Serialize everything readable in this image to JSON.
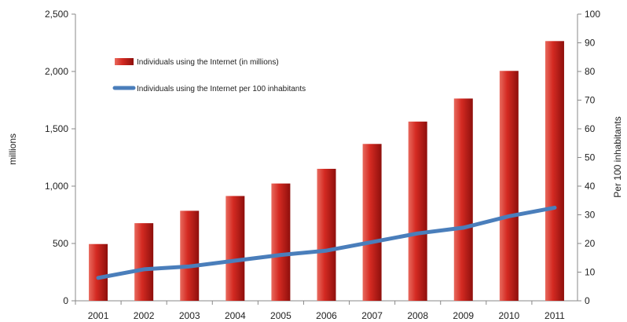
{
  "chart_data": {
    "type": "bar",
    "categories": [
      "2001",
      "2002",
      "2003",
      "2004",
      "2005",
      "2006",
      "2007",
      "2008",
      "2009",
      "2010",
      "2011"
    ],
    "series": [
      {
        "name": "Individuals using the Internet (in millions)",
        "type": "bar",
        "axis": "left",
        "values": [
          495,
          677,
          785,
          914,
          1023,
          1151,
          1368,
          1563,
          1764,
          2005,
          2265
        ]
      },
      {
        "name": "Individuals using the Internet per 100 inhabitants",
        "type": "line",
        "axis": "right",
        "values": [
          8,
          11,
          12,
          14,
          16,
          17.5,
          20.5,
          23.5,
          25.5,
          29.5,
          32.5
        ]
      }
    ],
    "ylabel": "millions",
    "y2label": "Per 100 inhabitants",
    "ylim": [
      0,
      2500
    ],
    "y2lim": [
      0,
      100
    ],
    "yticks": [
      "0",
      "500",
      "1,000",
      "1,500",
      "2,000",
      "2,500"
    ],
    "y2ticks": [
      "0",
      "10",
      "20",
      "30",
      "40",
      "50",
      "60",
      "70",
      "80",
      "90",
      "100"
    ],
    "legend_position": "top-left",
    "grid": false,
    "colors": {
      "bar": "#c8201e",
      "line": "#4a7ebb",
      "axis": "#888888"
    }
  }
}
